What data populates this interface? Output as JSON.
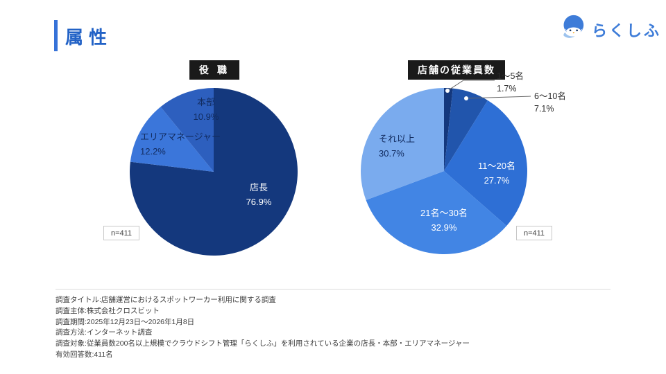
{
  "page": {
    "title": "属性",
    "logo_text": "らくしふ"
  },
  "colors": {
    "accent_blue": "#2262c6",
    "logo_blue": "#3e7cd8",
    "title_box_bg": "#1a1a1a"
  },
  "chart_data": [
    {
      "type": "pie",
      "title": "役 職",
      "n_label": "n=411",
      "legend_position": "on-slice",
      "slices": [
        {
          "label": "店長",
          "value": 76.9,
          "pct": "76.9%",
          "color": "#14387d",
          "text_color": "#ffffff"
        },
        {
          "label": "エリアマネージャー",
          "value": 12.2,
          "pct": "12.2%",
          "color": "#3b76da",
          "text_color": "#122c60"
        },
        {
          "label": "本部",
          "value": 10.9,
          "pct": "10.9%",
          "color": "#2d5fbe",
          "text_color": "#122c60"
        }
      ]
    },
    {
      "type": "pie",
      "title": "店舗の従業員数",
      "n_label": "n=411",
      "legend_position": "on-slice-and-callout",
      "slices": [
        {
          "label": "1〜5名",
          "value": 1.7,
          "pct": "1.7%",
          "color": "#14387d",
          "text_color": "#2b2b2b"
        },
        {
          "label": "6〜10名",
          "value": 7.1,
          "pct": "7.1%",
          "color": "#2155ac",
          "text_color": "#2b2b2b"
        },
        {
          "label": "11〜20名",
          "value": 27.7,
          "pct": "27.7%",
          "color": "#2e6fd5",
          "text_color": "#ffffff"
        },
        {
          "label": "21名〜30名",
          "value": 32.9,
          "pct": "32.9%",
          "color": "#4285e4",
          "text_color": "#ffffff"
        },
        {
          "label": "それ以上",
          "value": 30.7,
          "pct": "30.7%",
          "color": "#7aabee",
          "text_color": "#122c60"
        }
      ]
    }
  ],
  "survey_notes": {
    "lines": [
      "調査タイトル:店舗運営におけるスポットワーカー利用に関する調査",
      "調査主体:株式会社クロスビット",
      "調査期間:2025年12月23日〜2026年1月8日",
      "調査方法:インターネット調査",
      "調査対象:従業員数200名以上規模でクラウドシフト管理「らくしふ」を利用されている企業の店長・本部・エリアマネージャー",
      "有効回答数:411名"
    ]
  }
}
